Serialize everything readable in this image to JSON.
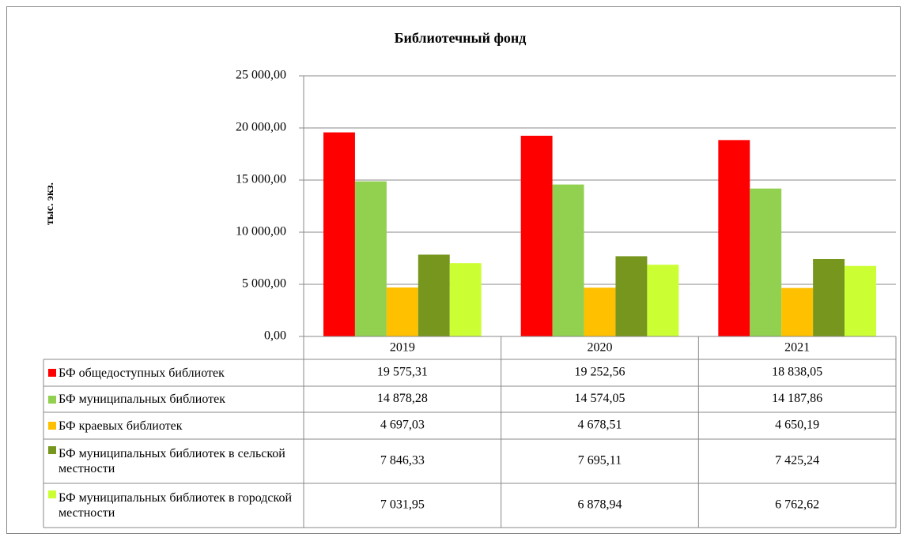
{
  "chart_data": {
    "type": "bar",
    "title": "Библиотечный фонд",
    "y_label": "тыс. экз.",
    "categories": [
      "2019",
      "2020",
      "2021"
    ],
    "series": [
      {
        "name": "БФ общедоступных библиотек",
        "color": "#ff0000",
        "values": [
          19575.31,
          19252.56,
          18838.05
        ],
        "value_labels": [
          "19 575,31",
          "19 252,56",
          "18 838,05"
        ]
      },
      {
        "name": "БФ муниципальных библиотек",
        "color": "#92d050",
        "values": [
          14878.28,
          14574.05,
          14187.86
        ],
        "value_labels": [
          "14 878,28",
          "14 574,05",
          "14 187,86"
        ]
      },
      {
        "name": "БФ краевых библиотек",
        "color": "#ffc000",
        "values": [
          4697.03,
          4678.51,
          4650.19
        ],
        "value_labels": [
          "4 697,03",
          "4 678,51",
          "4 650,19"
        ]
      },
      {
        "name": "БФ муниципальных библиотек в сельской местности",
        "color": "#76961e",
        "values": [
          7846.33,
          7695.11,
          7425.24
        ],
        "value_labels": [
          "7 846,33",
          "7 695,11",
          "7 425,24"
        ]
      },
      {
        "name": "БФ муниципальных библиотек в городской местности",
        "color": "#ccff33",
        "values": [
          7031.95,
          6878.94,
          6762.62
        ],
        "value_labels": [
          "7 031,95",
          "6 878,94",
          "6 762,62"
        ]
      }
    ],
    "ylim": [
      0,
      25000
    ],
    "yticks": [
      {
        "value": 0,
        "label": "0,00"
      },
      {
        "value": 5000,
        "label": "5 000,00"
      },
      {
        "value": 10000,
        "label": "10 000,00"
      },
      {
        "value": 15000,
        "label": "15 000,00"
      },
      {
        "value": 20000,
        "label": "20 000,00"
      },
      {
        "value": 25000,
        "label": "25 000,00"
      }
    ],
    "grid": true
  }
}
